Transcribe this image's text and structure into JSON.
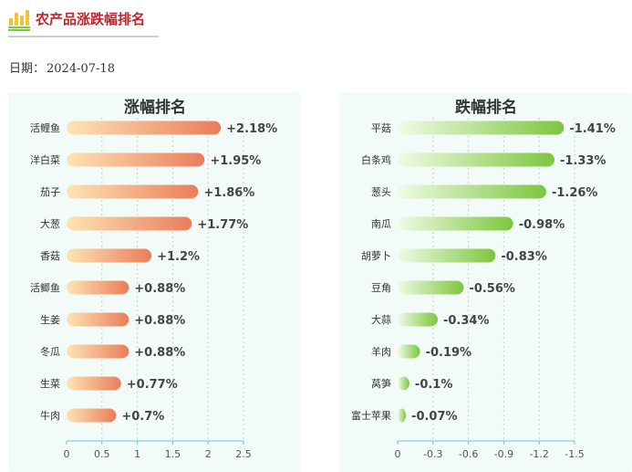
{
  "header": {
    "title": "农产品涨跌幅排名"
  },
  "date": {
    "label": "日期：",
    "value": "2024-07-18"
  },
  "colors": {
    "title": "#c0262d",
    "rise_bar_start": "#fde4b4",
    "rise_bar_end": "#ea7d5a",
    "fall_bar_start": "#effbe6",
    "fall_bar_end": "#7dc63f",
    "panel_bg": "#f3fbf8",
    "axis": "#5cc9dd"
  },
  "chart_data": [
    {
      "type": "bar",
      "orientation": "horizontal",
      "title": "涨幅排名",
      "categories": [
        "活鲤鱼",
        "洋白菜",
        "茄子",
        "大葱",
        "香菇",
        "活鲫鱼",
        "生姜",
        "冬瓜",
        "生菜",
        "牛肉"
      ],
      "values": [
        2.18,
        1.95,
        1.86,
        1.77,
        1.2,
        0.88,
        0.88,
        0.88,
        0.77,
        0.7
      ],
      "value_labels": [
        "+2.18%",
        "+1.95%",
        "+1.86%",
        "+1.77%",
        "+1.2%",
        "+0.88%",
        "+0.88%",
        "+0.88%",
        "+0.77%",
        "+0.7%"
      ],
      "xlim": [
        0,
        2.5
      ],
      "xticks": [
        0,
        0.5,
        1,
        1.5,
        2,
        2.5
      ],
      "xtick_labels": [
        "0",
        "0.5",
        "1",
        "1.5",
        "2",
        "2.5"
      ],
      "grid": true
    },
    {
      "type": "bar",
      "orientation": "horizontal",
      "title": "跌幅排名",
      "categories": [
        "平菇",
        "白条鸡",
        "葱头",
        "南瓜",
        "胡萝卜",
        "豆角",
        "大蒜",
        "羊肉",
        "莴笋",
        "富士苹果"
      ],
      "values": [
        -1.41,
        -1.33,
        -1.26,
        -0.98,
        -0.83,
        -0.56,
        -0.34,
        -0.19,
        -0.1,
        -0.07
      ],
      "value_labels": [
        "-1.41%",
        "-1.33%",
        "-1.26%",
        "-0.98%",
        "-0.83%",
        "-0.56%",
        "-0.34%",
        "-0.19%",
        "-0.1%",
        "-0.07%"
      ],
      "xlim": [
        0,
        -1.5
      ],
      "xticks": [
        0,
        -0.3,
        -0.6,
        -0.9,
        -1.2,
        -1.5
      ],
      "xtick_labels": [
        "0",
        "-0.3",
        "-0.6",
        "-0.9",
        "-1.2",
        "-1.5"
      ],
      "grid": true
    }
  ]
}
